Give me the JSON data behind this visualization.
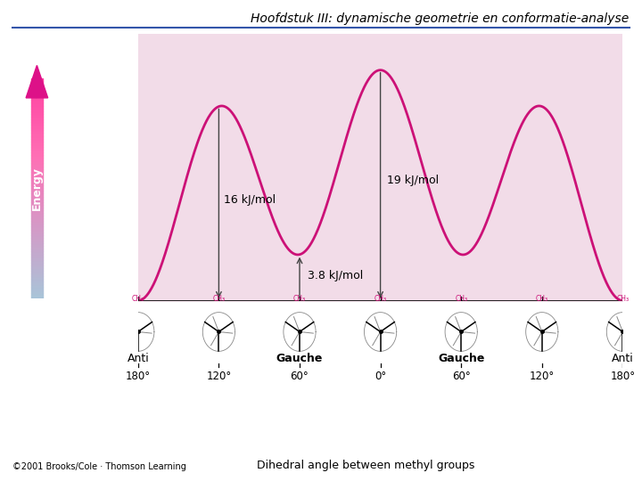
{
  "title": "Hoofdstuk III: dynamische geometrie en conformatie-analyse",
  "title_fontsize": 10,
  "xlabel": "Dihedral angle between methyl groups",
  "ylabel": "Energy",
  "plot_bg": "#f2dce8",
  "curve_color": "#cc1177",
  "curve_linewidth": 2.0,
  "arrow_color": "#444444",
  "annotation_16": "16 kJ/mol",
  "annotation_19": "19 kJ/mol",
  "annotation_38": "3.8 kJ/mol",
  "x_ticks": [
    -180,
    -120,
    -60,
    0,
    60,
    120,
    180
  ],
  "x_tick_labels": [
    "180°",
    "120°",
    "60°",
    "0°",
    "60°",
    "120°",
    "180°"
  ],
  "conformer_labels": [
    {
      "text": "Anti",
      "x": -180
    },
    {
      "text": "Gauche",
      "x": -60
    },
    {
      "text": "Gauche",
      "x": 60
    },
    {
      "text": "Anti",
      "x": 180
    }
  ],
  "copyright": "©2001 Brooks/Cole · Thomson Learning",
  "header_line_color": "#3355aa",
  "ylim": [
    0,
    22
  ],
  "a_c": 9.767,
  "b_c": 2.267,
  "c_c": -0.267,
  "d_c": 7.233
}
